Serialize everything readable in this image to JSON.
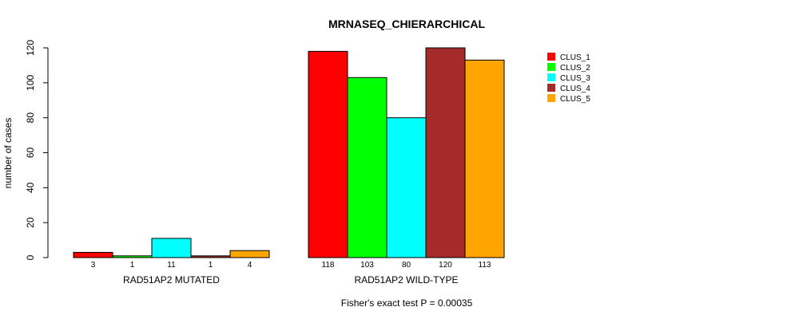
{
  "chart_data": {
    "type": "bar",
    "title": "MRNASEQ_CHIERARCHICAL",
    "ylabel": "number of cases",
    "xlabel": "",
    "ylim": [
      0,
      120
    ],
    "yticks": [
      0,
      20,
      40,
      60,
      80,
      100,
      120
    ],
    "groups": [
      {
        "label": "RAD51AP2 MUTATED",
        "values": [
          3,
          1,
          11,
          1,
          4
        ]
      },
      {
        "label": "RAD51AP2 WILD-TYPE",
        "values": [
          118,
          103,
          80,
          120,
          113
        ]
      }
    ],
    "series": [
      {
        "name": "CLUS_1",
        "color": "#ff0000"
      },
      {
        "name": "CLUS_2",
        "color": "#00ff00"
      },
      {
        "name": "CLUS_3",
        "color": "#00ffff"
      },
      {
        "name": "CLUS_4",
        "color": "#a52a2a"
      },
      {
        "name": "CLUS_5",
        "color": "#ffa500"
      }
    ],
    "legend_position": "top-right",
    "footnote": "Fisher's exact test P = 0.00035"
  }
}
